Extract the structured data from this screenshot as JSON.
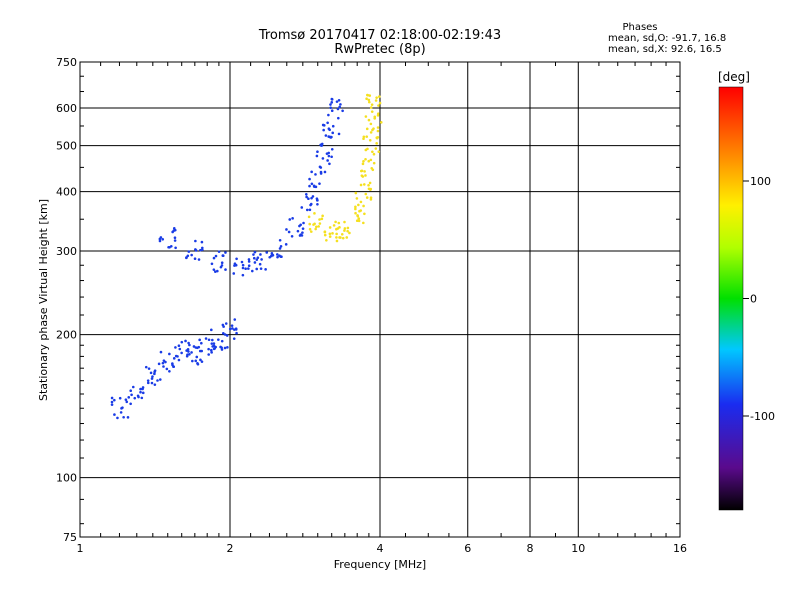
{
  "title": "Tromsø 20170417 02:18:00-02:19:43",
  "subtitle": "RwPretec (8p)",
  "phases": {
    "header": "Phases",
    "o_line": "mean, sd,O: -91.7, 16.8",
    "x_line": "mean, sd,X:  92.6, 16.5"
  },
  "colorbar": {
    "unit": "[deg]",
    "tick_labels": [
      "100",
      "0",
      "-100"
    ],
    "range": [
      -180,
      180
    ]
  },
  "chart_data": {
    "type": "scatter",
    "title": "Tromsø 20170417 02:18:00-02:19:43",
    "subtitle": "RwPretec (8p)",
    "xlabel": "Frequency [MHz]",
    "ylabel": "Stationary phase Virtual Height [km]",
    "xscale": "log",
    "yscale": "log",
    "xlim": [
      1,
      16
    ],
    "ylim": [
      75,
      750
    ],
    "xticks": [
      1,
      2,
      4,
      6,
      8,
      10,
      16
    ],
    "xtick_labels": [
      "1",
      "2",
      "4",
      "6",
      "8",
      "10",
      "16"
    ],
    "yticks": [
      75,
      100,
      200,
      300,
      400,
      500,
      600,
      750
    ],
    "ytick_labels": [
      "75",
      "100",
      "200",
      "300",
      "400",
      "500",
      "600",
      "750"
    ],
    "grid": true,
    "color_variable": "phase [deg]",
    "series": [
      {
        "label": "O mode",
        "color": "#1a3ce6",
        "points": [
          [
            1.2,
            140
          ],
          [
            1.3,
            150
          ],
          [
            1.4,
            165
          ],
          [
            1.5,
            175
          ],
          [
            1.6,
            185
          ],
          [
            1.7,
            180
          ],
          [
            1.8,
            190
          ],
          [
            1.9,
            195
          ],
          [
            2.0,
            205
          ],
          [
            1.5,
            320
          ],
          [
            1.7,
            300
          ],
          [
            1.9,
            285
          ],
          [
            2.1,
            275
          ],
          [
            2.3,
            285
          ],
          [
            2.5,
            305
          ],
          [
            2.7,
            335
          ],
          [
            2.9,
            380
          ],
          [
            3.0,
            430
          ],
          [
            3.1,
            480
          ],
          [
            3.2,
            540
          ],
          [
            3.25,
            600
          ]
        ]
      },
      {
        "label": "X mode",
        "color": "#f5e020",
        "points": [
          [
            3.0,
            345
          ],
          [
            3.2,
            330
          ],
          [
            3.4,
            335
          ],
          [
            3.6,
            360
          ],
          [
            3.7,
            400
          ],
          [
            3.8,
            450
          ],
          [
            3.85,
            500
          ],
          [
            3.9,
            560
          ],
          [
            3.9,
            610
          ]
        ]
      }
    ]
  }
}
